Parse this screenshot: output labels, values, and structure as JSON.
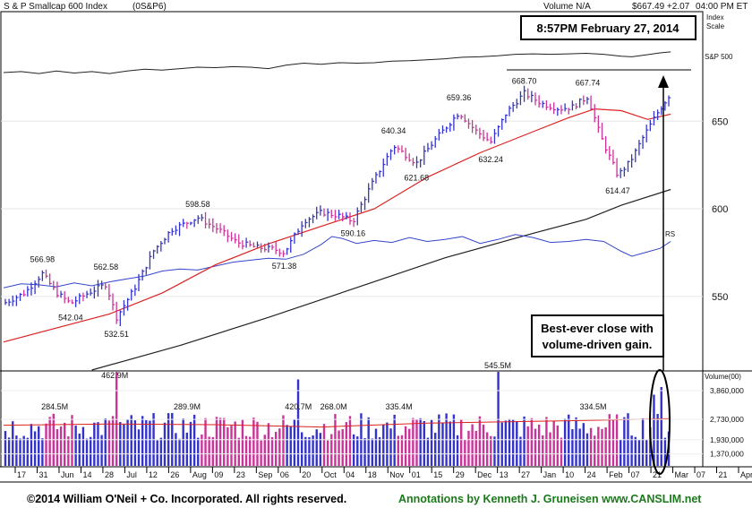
{
  "header": {
    "index_name": "S & P Smallcap 600 Index",
    "symbol": "(0S&P6)",
    "volume": "Volume N/A",
    "quote": "$667.49 +2.07",
    "time": "04:00 PM ET",
    "scale_label_1": "Index",
    "scale_label_2": "Scale"
  },
  "date_box": "8:57PM February 27, 2014",
  "annotation": {
    "line1": "Best-ever close with",
    "line2": "volume-driven gain."
  },
  "sp500_label": "S&P 500",
  "rs_label": "RS",
  "volume_axis_title": "Volume(00)",
  "footer": {
    "copyright": "©2014 William O'Neil + Co. Incorporated. All rights reserved.",
    "annotations": "Annotations by Kenneth J. Gruneisen www.CANSLIM.net"
  },
  "colors": {
    "up_bar": "#3333cc",
    "down_bar": "#cc3399",
    "ma50": "#dd2222",
    "ma200": "#222222",
    "rs_line": "#3344cc",
    "sp500_line": "#222222",
    "volume_avg": "#dd2222",
    "footer_left": "#000000",
    "footer_right": "#1a7a1a"
  },
  "chart_data": {
    "type": "line",
    "title": "S & P Smallcap 600 Index",
    "y_axis": {
      "ticks": [
        "650",
        "600",
        "550"
      ],
      "tick_values": [
        650,
        600,
        550
      ],
      "range": [
        508,
        712
      ]
    },
    "x_axis": {
      "ticks": [
        "17",
        "31",
        "Jun",
        "14",
        "28",
        "Jul",
        "12",
        "26",
        "Aug",
        "09",
        "23",
        "Sep",
        "06",
        "20",
        "Oct",
        "04",
        "18",
        "Nov",
        "01",
        "15",
        "29",
        "Dec",
        "13",
        "27",
        "Jan",
        "10",
        "24",
        "Feb",
        "07",
        "21",
        "Mar",
        "07",
        "21",
        "Apr"
      ],
      "range": [
        0,
        42
      ]
    },
    "price_labels": [
      {
        "text": "566.98",
        "x": 2.2,
        "value": 566.98,
        "pos": "above"
      },
      {
        "text": "542.04",
        "x": 3.8,
        "value": 542.04,
        "pos": "below"
      },
      {
        "text": "562.58",
        "x": 5.8,
        "value": 562.58,
        "pos": "above"
      },
      {
        "text": "532.51",
        "x": 6.4,
        "value": 532.51,
        "pos": "below"
      },
      {
        "text": "598.58",
        "x": 11.0,
        "value": 598.58,
        "pos": "above"
      },
      {
        "text": "571.38",
        "x": 15.9,
        "value": 571.38,
        "pos": "below"
      },
      {
        "text": "590.16",
        "x": 19.8,
        "value": 590.16,
        "pos": "below"
      },
      {
        "text": "640.34",
        "x": 22.1,
        "value": 640.34,
        "pos": "above"
      },
      {
        "text": "621.68",
        "x": 23.4,
        "value": 621.68,
        "pos": "below"
      },
      {
        "text": "659.36",
        "x": 25.8,
        "value": 659.36,
        "pos": "above"
      },
      {
        "text": "632.24",
        "x": 27.6,
        "value": 632.24,
        "pos": "below"
      },
      {
        "text": "668.70",
        "x": 29.5,
        "value": 668.7,
        "pos": "above"
      },
      {
        "text": "667.74",
        "x": 33.1,
        "value": 667.74,
        "pos": "above"
      },
      {
        "text": "614.47",
        "x": 34.8,
        "value": 614.47,
        "pos": "below"
      }
    ],
    "price_waypoints": [
      [
        0.0,
        546
      ],
      [
        1.2,
        552
      ],
      [
        2.2,
        563
      ],
      [
        3.0,
        552
      ],
      [
        3.8,
        546
      ],
      [
        4.8,
        552
      ],
      [
        5.8,
        557
      ],
      [
        6.4,
        538
      ],
      [
        7.5,
        556
      ],
      [
        8.5,
        576
      ],
      [
        9.5,
        588
      ],
      [
        11.0,
        595
      ],
      [
        12.2,
        588
      ],
      [
        13.2,
        581
      ],
      [
        14.3,
        578
      ],
      [
        15.3,
        577
      ],
      [
        15.9,
        575
      ],
      [
        17.0,
        593
      ],
      [
        18.0,
        598
      ],
      [
        19.0,
        596
      ],
      [
        19.8,
        593
      ],
      [
        20.8,
        613
      ],
      [
        22.1,
        636
      ],
      [
        23.4,
        626
      ],
      [
        24.5,
        640
      ],
      [
        25.8,
        655
      ],
      [
        26.7,
        645
      ],
      [
        27.6,
        638
      ],
      [
        28.5,
        655
      ],
      [
        29.5,
        666
      ],
      [
        30.5,
        660
      ],
      [
        31.5,
        657
      ],
      [
        32.2,
        658
      ],
      [
        33.1,
        664
      ],
      [
        33.8,
        642
      ],
      [
        34.8,
        619
      ],
      [
        35.5,
        627
      ],
      [
        36.3,
        642
      ],
      [
        37.0,
        654
      ],
      [
        37.8,
        666
      ]
    ],
    "ma50": [
      [
        0.0,
        524
      ],
      [
        3.0,
        532
      ],
      [
        6.0,
        540
      ],
      [
        9.0,
        552
      ],
      [
        12.0,
        568
      ],
      [
        15.0,
        580
      ],
      [
        18.0,
        590
      ],
      [
        21.0,
        600
      ],
      [
        24.0,
        618
      ],
      [
        27.0,
        632
      ],
      [
        30.0,
        644
      ],
      [
        32.0,
        652
      ],
      [
        33.5,
        657
      ],
      [
        35.0,
        656
      ],
      [
        36.5,
        651
      ],
      [
        37.8,
        654
      ]
    ],
    "ma200": [
      [
        5.0,
        508
      ],
      [
        10.0,
        522
      ],
      [
        15.0,
        538
      ],
      [
        20.0,
        555
      ],
      [
        25.0,
        572
      ],
      [
        30.0,
        586
      ],
      [
        33.0,
        594
      ],
      [
        35.0,
        602
      ],
      [
        37.8,
        611
      ]
    ],
    "rs_line": [
      [
        0.0,
        8
      ],
      [
        1.0,
        12
      ],
      [
        2.0,
        11
      ],
      [
        3.0,
        9
      ],
      [
        4.0,
        13
      ],
      [
        5.0,
        10
      ],
      [
        6.0,
        14
      ],
      [
        7.0,
        17
      ],
      [
        8.0,
        20
      ],
      [
        9.0,
        25
      ],
      [
        10.0,
        27
      ],
      [
        11.0,
        26
      ],
      [
        12.0,
        30
      ],
      [
        13.0,
        34
      ],
      [
        14.0,
        36
      ],
      [
        15.0,
        38
      ],
      [
        16.0,
        37
      ],
      [
        17.0,
        42
      ],
      [
        18.0,
        52
      ],
      [
        18.6,
        60
      ],
      [
        19.2,
        58
      ],
      [
        20.0,
        53
      ],
      [
        21.0,
        56
      ],
      [
        22.0,
        54
      ],
      [
        23.0,
        59
      ],
      [
        24.0,
        55
      ],
      [
        25.0,
        57
      ],
      [
        26.0,
        60
      ],
      [
        27.0,
        53
      ],
      [
        28.0,
        57
      ],
      [
        29.0,
        62
      ],
      [
        30.0,
        59
      ],
      [
        31.0,
        54
      ],
      [
        32.0,
        55
      ],
      [
        33.0,
        57
      ],
      [
        34.0,
        55
      ],
      [
        35.0,
        45
      ],
      [
        35.6,
        40
      ],
      [
        36.4,
        44
      ],
      [
        37.2,
        48
      ],
      [
        37.8,
        55
      ]
    ],
    "sp500_line": [
      [
        0.0,
        40
      ],
      [
        1.0,
        42
      ],
      [
        2.0,
        38
      ],
      [
        3.0,
        43
      ],
      [
        4.0,
        39
      ],
      [
        5.0,
        42
      ],
      [
        6.0,
        38
      ],
      [
        7.0,
        43
      ],
      [
        8.0,
        47
      ],
      [
        9.0,
        45
      ],
      [
        10.0,
        48
      ],
      [
        11.0,
        51
      ],
      [
        12.0,
        50
      ],
      [
        13.0,
        52
      ],
      [
        14.0,
        51
      ],
      [
        15.0,
        48
      ],
      [
        16.0,
        55
      ],
      [
        17.0,
        59
      ],
      [
        18.0,
        57
      ],
      [
        19.0,
        60
      ],
      [
        20.0,
        59
      ],
      [
        21.0,
        60
      ],
      [
        22.0,
        63
      ],
      [
        23.0,
        64
      ],
      [
        24.0,
        66
      ],
      [
        25.0,
        68
      ],
      [
        26.0,
        71
      ],
      [
        27.0,
        72
      ],
      [
        28.0,
        74
      ],
      [
        29.0,
        77
      ],
      [
        30.0,
        78
      ],
      [
        31.0,
        77
      ],
      [
        32.0,
        78
      ],
      [
        33.0,
        79
      ],
      [
        34.0,
        77
      ],
      [
        35.0,
        73
      ],
      [
        35.6,
        72
      ],
      [
        36.4,
        76
      ],
      [
        37.2,
        80
      ],
      [
        37.8,
        82
      ]
    ],
    "volume": {
      "y_ticks": [
        "3,860,000",
        "2,730,000",
        "1,930,000",
        "1,370,000"
      ],
      "y_tick_values": [
        3860000,
        2730000,
        1930000,
        1370000
      ],
      "range": [
        900000,
        4600000
      ],
      "labels": [
        {
          "text": "284.5M",
          "x": 2.9
        },
        {
          "text": "462.9M",
          "x": 6.3
        },
        {
          "text": "289.9M",
          "x": 10.4
        },
        {
          "text": "420.7M",
          "x": 16.7
        },
        {
          "text": "268.0M",
          "x": 18.7
        },
        {
          "text": "335.4M",
          "x": 22.4
        },
        {
          "text": "545.5M",
          "x": 28.0
        },
        {
          "text": "334.5M",
          "x": 33.4
        }
      ],
      "spikes": [
        {
          "x": 6.3,
          "value": 4600000,
          "up": false
        },
        {
          "x": 16.7,
          "value": 4300000,
          "up": false
        },
        {
          "x": 28.0,
          "value": 4900000,
          "up": true
        },
        {
          "x": 36.9,
          "value": 3700000,
          "up": true
        },
        {
          "x": 37.3,
          "value": 4000000,
          "up": true
        }
      ],
      "avg_line": [
        [
          0.0,
          2500000
        ],
        [
          6.0,
          2550000
        ],
        [
          12.0,
          2520000
        ],
        [
          18.0,
          2430000
        ],
        [
          24.0,
          2580000
        ],
        [
          30.0,
          2650000
        ],
        [
          34.0,
          2700000
        ],
        [
          37.8,
          2760000
        ]
      ]
    }
  }
}
